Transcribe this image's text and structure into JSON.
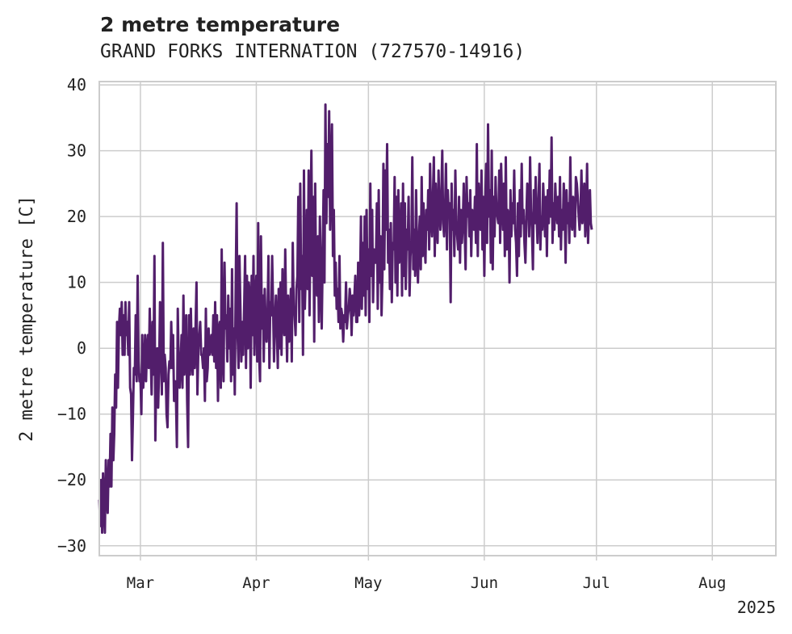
{
  "chart_data": {
    "type": "line",
    "title": "2 metre temperature",
    "subtitle": "GRAND FORKS INTERNATION (727570-14916)",
    "ylabel": "2 metre temperature [C]",
    "xlabel": "",
    "year_label": "2025",
    "ylim": [
      -31.5,
      40.5
    ],
    "xlim": [
      "2025-02-18",
      "2025-08-18"
    ],
    "grid": true,
    "legend": "none",
    "y_ticks": [
      -30,
      -20,
      -10,
      0,
      10,
      20,
      30,
      40
    ],
    "x_ticks": [
      {
        "date": "2025-03-01",
        "label": "Mar"
      },
      {
        "date": "2025-04-01",
        "label": "Apr"
      },
      {
        "date": "2025-05-01",
        "label": "May"
      },
      {
        "date": "2025-06-01",
        "label": "Jun"
      },
      {
        "date": "2025-07-01",
        "label": "Jul"
      },
      {
        "date": "2025-08-01",
        "label": "Aug"
      }
    ],
    "series": [
      {
        "color": "#521e6b",
        "resolution": "6-hourly",
        "x_start": "2025-02-18",
        "values": [
          -23,
          -27,
          -20,
          -28,
          -19,
          -24,
          -28,
          -17,
          -22,
          -25,
          -17,
          -21,
          -13,
          -21,
          -9,
          -17,
          -13,
          -4,
          -9,
          4,
          -6,
          3,
          6,
          2,
          7,
          -1,
          5,
          -1,
          7,
          2,
          4,
          -1,
          7,
          -6,
          -7,
          -17,
          -10,
          -3,
          -4,
          5,
          -5,
          11,
          -2,
          -5,
          -4,
          -10,
          2,
          -6,
          -3,
          2,
          -5,
          0,
          2,
          -3,
          6,
          -1,
          -7,
          4,
          -4,
          14,
          -14,
          -4,
          0,
          -9,
          -3,
          7,
          0,
          -7,
          16,
          -5,
          -1,
          -3,
          -10,
          -12,
          -4,
          -2,
          -3,
          4,
          -3,
          2,
          -8,
          -5,
          -7,
          -15,
          6,
          -3,
          -6,
          -2,
          2,
          -6,
          8,
          -4,
          -1,
          5,
          -8,
          -15,
          5,
          -4,
          6,
          -2,
          -4,
          3,
          -3,
          3,
          10,
          -7,
          0,
          2,
          4,
          -1,
          -1,
          -3,
          0,
          -8,
          6,
          -5,
          -3,
          3,
          -1,
          0,
          2,
          -1,
          5,
          -2,
          7,
          -3,
          5,
          -8,
          3,
          4,
          -6,
          15,
          -1,
          -5,
          13,
          3,
          5,
          -2,
          8,
          0,
          6,
          -5,
          12,
          -4,
          3,
          -7,
          10,
          22,
          2,
          -3,
          14,
          6,
          -2,
          4,
          -1,
          6,
          14,
          -3,
          11,
          0,
          10,
          8,
          -6,
          11,
          2,
          14,
          -1,
          7,
          11,
          -2,
          19,
          -1,
          -5,
          17,
          3,
          8,
          -2,
          9,
          4,
          1,
          4,
          14,
          -3,
          7,
          5,
          14,
          6,
          -2,
          4,
          8,
          3,
          -3,
          9,
          0,
          10,
          -1,
          12,
          4,
          2,
          15,
          5,
          -2,
          8,
          1,
          4,
          9,
          -2,
          16,
          6,
          5,
          2,
          9,
          11,
          23,
          4,
          25,
          9,
          14,
          -1,
          27,
          6,
          12,
          21,
          9,
          27,
          5,
          18,
          30,
          11,
          23,
          1,
          25,
          10,
          8,
          17,
          4,
          20,
          12,
          3,
          13,
          24,
          10,
          37,
          19,
          31,
          23,
          36,
          18,
          26,
          34,
          14,
          21,
          8,
          13,
          6,
          9,
          4,
          14,
          3,
          6,
          5,
          1,
          5,
          4,
          10,
          3,
          5,
          6,
          9,
          7,
          2,
          8,
          5,
          8,
          11,
          4,
          4,
          13,
          5,
          9,
          20,
          6,
          16,
          8,
          20,
          5,
          21,
          9,
          15,
          4,
          25,
          11,
          21,
          7,
          15,
          13,
          13,
          22,
          6,
          24,
          10,
          17,
          5,
          11,
          28,
          12,
          27,
          18,
          31,
          13,
          18,
          9,
          19,
          7,
          16,
          15,
          26,
          10,
          23,
          8,
          24,
          13,
          15,
          22,
          8,
          25,
          11,
          22,
          9,
          18,
          15,
          23,
          8,
          14,
          16,
          29,
          12,
          18,
          11,
          24,
          15,
          10,
          17,
          20,
          12,
          26,
          14,
          22,
          16,
          13,
          21,
          18,
          24,
          15,
          28,
          20,
          17,
          23,
          29,
          14,
          25,
          19,
          16,
          27,
          21,
          18,
          23,
          30,
          19,
          17,
          21,
          28,
          15,
          24,
          20,
          22,
          7,
          25,
          18,
          21,
          14,
          27,
          19,
          17,
          15,
          23,
          13,
          21,
          16,
          19,
          25,
          18,
          12,
          26,
          20,
          22,
          17,
          24,
          14,
          21,
          19,
          18,
          23,
          16,
          31,
          14,
          25,
          20,
          18,
          27,
          15,
          23,
          11,
          22,
          28,
          16,
          34,
          20,
          24,
          13,
          30,
          12,
          23,
          17,
          26,
          21,
          20,
          19,
          27,
          16,
          28,
          22,
          18,
          25,
          14,
          29,
          15,
          21,
          20,
          10,
          24,
          17,
          22,
          19,
          27,
          18,
          16,
          11,
          22,
          14,
          24,
          17,
          28,
          19,
          21,
          16,
          13,
          20,
          25,
          23,
          17,
          29,
          21,
          18,
          12,
          24,
          19,
          26,
          20,
          16,
          22,
          28,
          15,
          20,
          18,
          25,
          21,
          17,
          23,
          14,
          24,
          19,
          27,
          20,
          32,
          16,
          22,
          18,
          25,
          21,
          19,
          23,
          17,
          26,
          15,
          21,
          18,
          25,
          21,
          13,
          24,
          19,
          22,
          16,
          29,
          20,
          18,
          23,
          21,
          17,
          26,
          25,
          23,
          20,
          18,
          21,
          27,
          19,
          22,
          25,
          17,
          20,
          28,
          16,
          21,
          24,
          19,
          18
        ]
      }
    ]
  }
}
